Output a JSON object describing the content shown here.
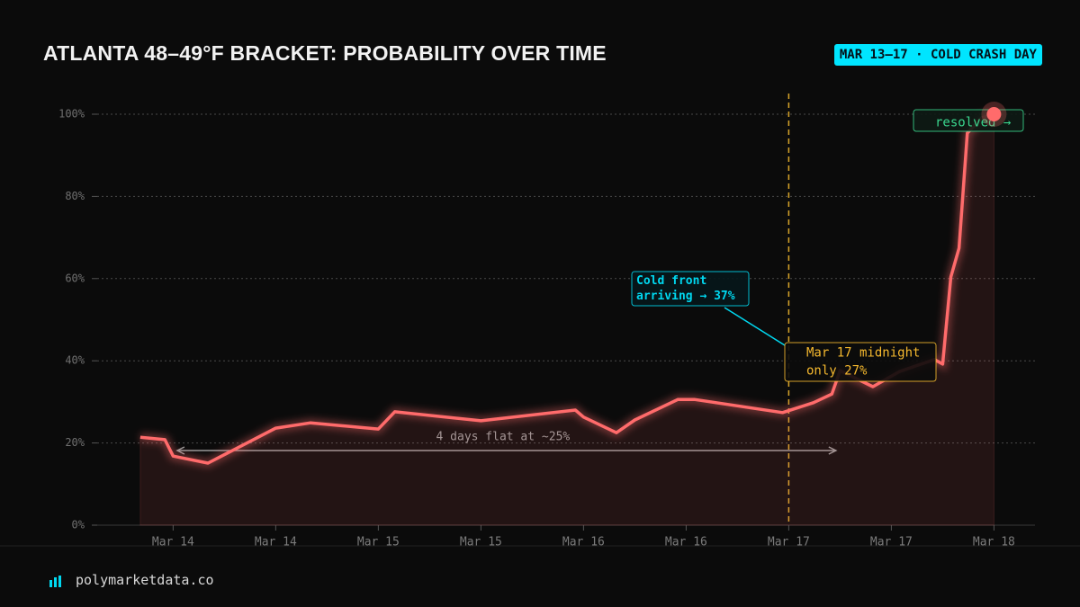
{
  "chart_data": {
    "type": "line",
    "title": "ATLANTA 48–49°F BRACKET: PROBABILITY OVER TIME",
    "badge": "MAR 13–17 · COLD CRASH DAY",
    "footer": "polymarketdata.co",
    "x": [
      13.84,
      13.96,
      14.0,
      14.17,
      14.5,
      14.67,
      15.0,
      15.08,
      15.5,
      15.96,
      16.0,
      16.16,
      16.25,
      16.46,
      16.54,
      16.97,
      17.12,
      17.21,
      17.25,
      17.41,
      17.54,
      17.71,
      17.75,
      17.79,
      17.83,
      17.87,
      17.94,
      18.0
    ],
    "series": [
      {
        "name": "Probability",
        "color": "#ff6b6b",
        "values": [
          21.4,
          20.8,
          16.8,
          15.1,
          23.6,
          24.9,
          23.4,
          27.6,
          25.4,
          28.0,
          26.3,
          22.5,
          25.6,
          30.6,
          30.6,
          27.4,
          29.8,
          31.9,
          37.6,
          33.7,
          37.4,
          40.3,
          39.2,
          60.4,
          67.4,
          95.4,
          99.1,
          100
        ]
      }
    ],
    "xlim": [
      13.63,
      18.2
    ],
    "xticks": [
      {
        "value": 14,
        "label": "Mar 14"
      },
      {
        "value": 14.5,
        "label": "Mar 14"
      },
      {
        "value": 15,
        "label": "Mar 15"
      },
      {
        "value": 15.5,
        "label": "Mar 15"
      },
      {
        "value": 16,
        "label": "Mar 16"
      },
      {
        "value": 16.5,
        "label": "Mar 16"
      },
      {
        "value": 17,
        "label": "Mar 17"
      },
      {
        "value": 17.5,
        "label": "Mar 17"
      },
      {
        "value": 18,
        "label": "Mar 18"
      }
    ],
    "ylim": [
      0,
      100
    ],
    "yticks": [
      {
        "value": 0,
        "label": "0%"
      },
      {
        "value": 20,
        "label": "20%"
      },
      {
        "value": 40,
        "label": "40%"
      },
      {
        "value": 60,
        "label": "60%"
      },
      {
        "value": 80,
        "label": "80%"
      },
      {
        "value": 100,
        "label": "100%"
      }
    ],
    "grid": true,
    "marker_x": 17,
    "span": {
      "x": [
        14.02,
        17.23
      ],
      "label": "4 days flat at ~25%"
    },
    "annotations": [
      {
        "lines": [
          "Cold front",
          "arriving → 37%"
        ],
        "color": "#00d8f0"
      },
      {
        "lines": [
          "Mar 17 midnight",
          "only 27%"
        ],
        "color": "#f5b82e"
      },
      {
        "lines": [
          "resolved →"
        ],
        "color": "#3ad68e"
      }
    ]
  }
}
